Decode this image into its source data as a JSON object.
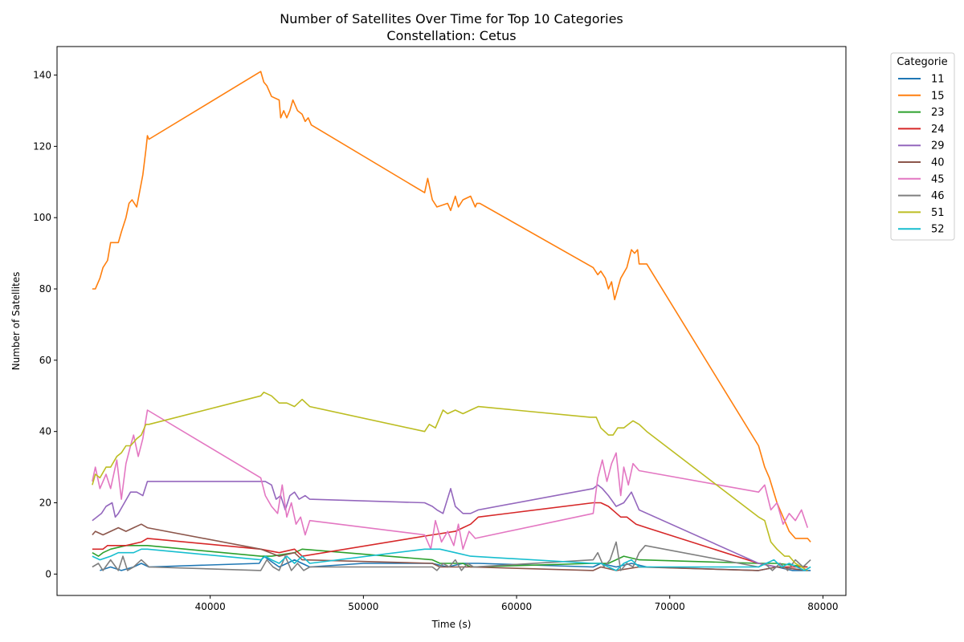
{
  "chart_data": {
    "type": "line",
    "title": "Number of Satellites Over Time for Top 10 Categories",
    "subtitle": "Constellation: Cetus",
    "xlabel": "Time (s)",
    "ylabel": "Number of Satellites",
    "xlim": [
      30000,
      81500
    ],
    "ylim": [
      -6,
      148
    ],
    "xticks": [
      40000,
      50000,
      60000,
      70000,
      80000
    ],
    "yticks": [
      0,
      20,
      40,
      60,
      80,
      100,
      120,
      140
    ],
    "grid": false,
    "legend": {
      "title": "Categorie",
      "placement": "outside-top-right"
    },
    "series": [
      {
        "name": "11",
        "color": "#1f77b4",
        "x": [
          32800,
          33500,
          34200,
          35000,
          35500,
          36000,
          43200,
          43500,
          44500,
          45500,
          46500,
          50000,
          54500,
          55500,
          56500,
          57500,
          65000,
          65500,
          66500,
          67500,
          68500,
          75800,
          77000,
          78000,
          79200
        ],
        "y": [
          1,
          2,
          1,
          2,
          3,
          2,
          3,
          5,
          2,
          4,
          2,
          3,
          3,
          2,
          3,
          3,
          2,
          3,
          2,
          3,
          2,
          1,
          2,
          1,
          1
        ]
      },
      {
        "name": "15",
        "color": "#ff7f0e",
        "x": [
          32300,
          32500,
          32800,
          33000,
          33300,
          33500,
          33800,
          34000,
          34200,
          34500,
          34700,
          34900,
          35200,
          35600,
          35800,
          35900,
          36000,
          43300,
          43500,
          43700,
          44000,
          44500,
          44600,
          44800,
          45000,
          45200,
          45400,
          45700,
          46000,
          46200,
          46400,
          46600,
          54000,
          54200,
          54500,
          54800,
          55500,
          55700,
          56000,
          56200,
          56500,
          57000,
          57300,
          57400,
          57600,
          65000,
          65300,
          65500,
          65800,
          66000,
          66200,
          66400,
          66600,
          66800,
          67200,
          67500,
          67700,
          67900,
          68000,
          68500,
          75800,
          76200,
          76500,
          77000,
          77500,
          77800,
          78200,
          79000,
          79200
        ],
        "y": [
          80,
          80,
          83,
          86,
          88,
          93,
          93,
          93,
          96,
          100,
          104,
          105,
          103,
          112,
          119,
          123,
          122,
          141,
          138,
          137,
          134,
          133,
          128,
          130,
          128,
          130,
          133,
          130,
          129,
          127,
          128,
          126,
          107,
          111,
          105,
          103,
          104,
          102,
          106,
          103,
          105,
          106,
          103,
          104,
          104,
          86,
          84,
          85,
          83,
          80,
          82,
          77,
          80,
          83,
          86,
          91,
          90,
          91,
          87,
          87,
          36,
          30,
          27,
          20,
          15,
          12,
          10,
          10,
          9
        ]
      },
      {
        "name": "23",
        "color": "#2ca02c",
        "x": [
          32300,
          32700,
          33000,
          33500,
          34500,
          35900,
          43300,
          44000,
          45500,
          46000,
          54500,
          55000,
          56500,
          57000,
          65000,
          66000,
          67000,
          68000,
          75800,
          77000,
          79000
        ],
        "y": [
          6,
          5,
          6,
          7,
          8,
          8,
          5,
          5,
          6,
          7,
          4,
          3,
          3,
          2,
          3,
          3,
          5,
          4,
          3,
          3,
          2
        ]
      },
      {
        "name": "24",
        "color": "#d62728",
        "x": [
          32300,
          33000,
          33300,
          34500,
          35500,
          35900,
          43300,
          44500,
          45500,
          46000,
          54500,
          56000,
          56500,
          57000,
          57500,
          65000,
          65500,
          66000,
          66800,
          67200,
          67800,
          68500,
          75800,
          77000,
          79000
        ],
        "y": [
          7,
          7,
          8,
          8,
          9,
          10,
          7,
          6,
          7,
          5,
          11,
          12,
          13,
          14,
          16,
          20,
          20,
          19,
          16,
          16,
          14,
          13,
          3,
          2,
          2
        ]
      },
      {
        "name": "29",
        "color": "#9467bd",
        "x": [
          32300,
          32600,
          32900,
          33200,
          33600,
          33800,
          34000,
          34400,
          34800,
          35200,
          35600,
          35900,
          36000,
          43300,
          43600,
          44000,
          44300,
          44600,
          44900,
          45200,
          45500,
          45800,
          46200,
          46500,
          54000,
          54500,
          54800,
          55200,
          55700,
          56000,
          56500,
          57000,
          57500,
          65000,
          65300,
          65600,
          66000,
          66500,
          67000,
          67500,
          68000,
          75800,
          77000,
          79000
        ],
        "y": [
          15,
          16,
          17,
          19,
          20,
          16,
          17,
          20,
          23,
          23,
          22,
          26,
          26,
          26,
          26,
          25,
          21,
          22,
          18,
          22,
          23,
          21,
          22,
          21,
          20,
          19,
          18,
          17,
          24,
          19,
          17,
          17,
          18,
          24,
          25,
          24,
          22,
          19,
          20,
          23,
          18,
          3,
          2,
          1
        ]
      },
      {
        "name": "40",
        "color": "#8c564b",
        "x": [
          32300,
          32500,
          33000,
          33500,
          34000,
          34500,
          35000,
          35500,
          35900,
          43300,
          44500,
          45500,
          46000,
          54500,
          55000,
          57000,
          65000,
          65500,
          66500,
          68000,
          75800,
          77000,
          79000
        ],
        "y": [
          11,
          12,
          11,
          12,
          13,
          12,
          13,
          14,
          13,
          7,
          5,
          6,
          4,
          3,
          2,
          2,
          1,
          2,
          1,
          2,
          1,
          2,
          1
        ]
      },
      {
        "name": "45",
        "color": "#e377c2",
        "x": [
          32300,
          32500,
          32800,
          33200,
          33500,
          33900,
          34200,
          34500,
          34800,
          35000,
          35300,
          35600,
          35900,
          43300,
          43600,
          44000,
          44400,
          44700,
          45000,
          45300,
          45600,
          45900,
          46200,
          46500,
          54000,
          54400,
          54700,
          55100,
          55500,
          55900,
          56200,
          56500,
          56900,
          57300,
          65000,
          65300,
          65600,
          65900,
          66200,
          66500,
          66800,
          67000,
          67300,
          67600,
          68000,
          75800,
          76200,
          76600,
          77000,
          77400,
          77800,
          78200,
          78600,
          79000
        ],
        "y": [
          26,
          30,
          24,
          28,
          24,
          32,
          21,
          31,
          36,
          39,
          33,
          38,
          46,
          27,
          22,
          19,
          17,
          25,
          16,
          20,
          14,
          16,
          11,
          15,
          11,
          7,
          15,
          9,
          12,
          8,
          14,
          7,
          12,
          10,
          17,
          27,
          32,
          26,
          31,
          34,
          22,
          30,
          25,
          31,
          29,
          23,
          25,
          18,
          20,
          14,
          17,
          15,
          18,
          13
        ]
      },
      {
        "name": "46",
        "color": "#7f7f7f",
        "x": [
          32300,
          32700,
          33000,
          33500,
          34000,
          34300,
          34600,
          35000,
          35500,
          36000,
          43300,
          43700,
          44100,
          44500,
          44900,
          45300,
          45700,
          46100,
          46500,
          54500,
          54800,
          55200,
          55600,
          56000,
          56400,
          56800,
          57200,
          65000,
          65300,
          65700,
          66100,
          66500,
          66800,
          67200,
          67600,
          68000,
          68400,
          75800,
          76200,
          76700,
          77200,
          77700,
          78200,
          78700,
          79200
        ],
        "y": [
          2,
          3,
          1,
          4,
          1,
          5,
          1,
          2,
          4,
          2,
          1,
          4,
          2,
          1,
          5,
          1,
          3,
          1,
          2,
          2,
          1,
          3,
          2,
          4,
          1,
          3,
          2,
          4,
          6,
          2,
          4,
          9,
          1,
          3,
          2,
          6,
          8,
          2,
          3,
          1,
          3,
          1,
          4,
          2,
          4
        ]
      },
      {
        "name": "51",
        "color": "#bcbd22",
        "x": [
          32300,
          32500,
          32800,
          33200,
          33500,
          33900,
          34200,
          34500,
          34800,
          35200,
          35500,
          35800,
          36000,
          43300,
          43500,
          44000,
          44500,
          45000,
          45500,
          46000,
          46500,
          54000,
          54300,
          54700,
          55200,
          55500,
          56000,
          56500,
          57000,
          57500,
          64800,
          65200,
          65500,
          66000,
          66300,
          66600,
          67000,
          67300,
          67600,
          68000,
          68500,
          75800,
          76200,
          76600,
          77000,
          77500,
          77800,
          78200,
          78600,
          79000
        ],
        "y": [
          25,
          28,
          27,
          30,
          30,
          33,
          34,
          36,
          36,
          38,
          39,
          42,
          42,
          50,
          51,
          50,
          48,
          48,
          47,
          49,
          47,
          40,
          42,
          41,
          46,
          45,
          46,
          45,
          46,
          47,
          44,
          44,
          41,
          39,
          39,
          41,
          41,
          42,
          43,
          42,
          40,
          16,
          15,
          9,
          7,
          5,
          5,
          3,
          2,
          1
        ]
      },
      {
        "name": "52",
        "color": "#17becf",
        "x": [
          32300,
          32800,
          33500,
          34000,
          34500,
          35000,
          35500,
          35900,
          43300,
          43600,
          44000,
          44500,
          45000,
          45500,
          46000,
          46500,
          54000,
          55000,
          56000,
          57000,
          65000,
          65500,
          66000,
          66500,
          67000,
          67500,
          68000,
          75800,
          76300,
          76800,
          77300,
          77800,
          78300,
          78800,
          79200
        ],
        "y": [
          5,
          4,
          5,
          6,
          6,
          6,
          7,
          7,
          4,
          5,
          4,
          3,
          5,
          3,
          5,
          3,
          7,
          7,
          6,
          5,
          3,
          3,
          2,
          1,
          3,
          4,
          2,
          2,
          3,
          4,
          2,
          3,
          2,
          1,
          2
        ]
      }
    ]
  }
}
